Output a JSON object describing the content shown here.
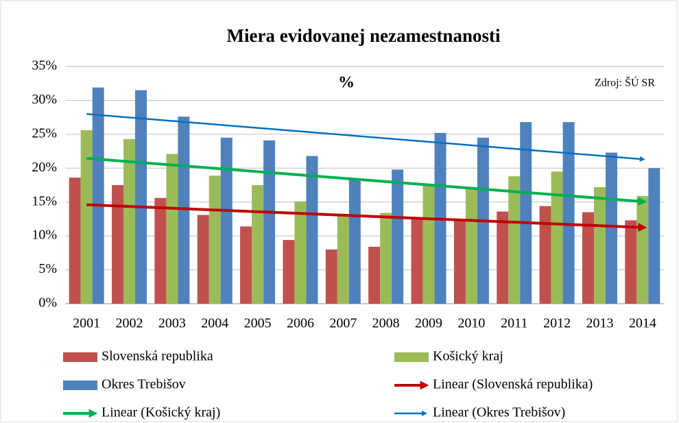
{
  "chart_data": {
    "type": "bar",
    "title": "Miera evidovanej nezamestnanosti",
    "annotations": [
      "%",
      "Zdroj: ŠÚ SR"
    ],
    "categories": [
      "2001",
      "2002",
      "2003",
      "2004",
      "2005",
      "2006",
      "2007",
      "2008",
      "2009",
      "2010",
      "2011",
      "2012",
      "2013",
      "2014"
    ],
    "series": [
      {
        "name": "Slovenská republika",
        "color": "#c0504d",
        "values": [
          18.6,
          17.5,
          15.6,
          13.1,
          11.4,
          9.4,
          8.0,
          8.4,
          12.7,
          12.5,
          13.6,
          14.4,
          13.5,
          12.3
        ],
        "trendline": {
          "name": "Linear (Slovenská republika)",
          "color": "#c00000"
        }
      },
      {
        "name": "Košický kraj",
        "color": "#9bbb59",
        "values": [
          25.6,
          24.3,
          22.1,
          18.9,
          17.5,
          15.1,
          12.9,
          13.4,
          17.5,
          17.0,
          18.8,
          19.5,
          17.2,
          15.9
        ],
        "trendline": {
          "name": "Linear (Košický kraj)",
          "color": "#00b050"
        }
      },
      {
        "name": "Okres Trebišov",
        "color": "#4f81bd",
        "values": [
          31.9,
          31.5,
          27.6,
          24.5,
          24.1,
          21.8,
          18.4,
          19.8,
          25.2,
          24.5,
          26.8,
          26.8,
          22.3,
          20.0
        ],
        "trendline": {
          "name": "Linear (Okres Trebišov)",
          "color": "#0070c0"
        }
      }
    ],
    "ylim": [
      0,
      35
    ],
    "yticks": [
      {
        "value": 0,
        "label": "0%"
      },
      {
        "value": 5,
        "label": "5%"
      },
      {
        "value": 10,
        "label": "10%"
      },
      {
        "value": 15,
        "label": "15%"
      },
      {
        "value": 20,
        "label": "20%"
      },
      {
        "value": 25,
        "label": "25%"
      },
      {
        "value": 30,
        "label": "30%"
      },
      {
        "value": 35,
        "label": "35%"
      }
    ],
    "grid": true,
    "legend": "bottom"
  }
}
